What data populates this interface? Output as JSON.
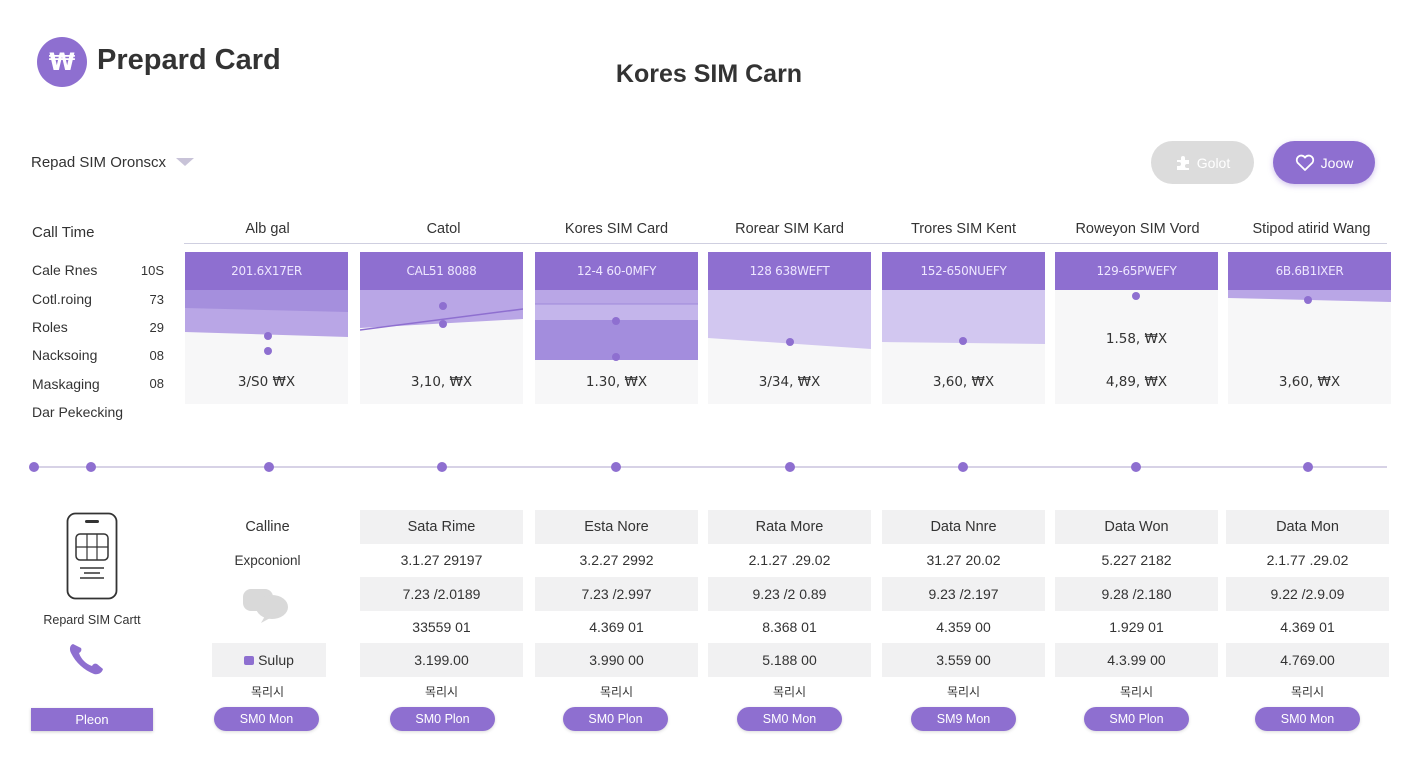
{
  "header": {
    "logo_glyph": "₩",
    "app_title": "Prepard Card",
    "page_title": "Kores SIM Carn"
  },
  "filter": {
    "dropdown_label": "Repad SIM Oronscx"
  },
  "buttons": {
    "global_label": "Golot",
    "join_label": "Joow"
  },
  "left_panel": {
    "call_time": "Call Time",
    "rows": [
      {
        "label": "Cale Rnes",
        "value": "10S"
      },
      {
        "label": "Cotl.roing",
        "value": "73"
      },
      {
        "label": "Roles",
        "value": "29"
      },
      {
        "label": "Nacksoing",
        "value": "08"
      },
      {
        "label": "Maskaging",
        "value": "08"
      },
      {
        "label": "Dar Pekecking",
        "value": ""
      }
    ],
    "phone_caption": "Repard SIM Cartt",
    "plan_label": "Pleon"
  },
  "columns": [
    {
      "name": "Alb gal",
      "code": "201.6X17ER",
      "price": "3/S0 ₩X",
      "mid": ""
    },
    {
      "name": "Catol",
      "code": "CAL51 8088",
      "price": "3,10, ₩X",
      "mid": ""
    },
    {
      "name": "Kores SIM Card",
      "code": "12-4 60-0MFY",
      "price": "1.30, ₩X",
      "mid": ""
    },
    {
      "name": "Rorear SIM Kard",
      "code": "128 638WEFT",
      "price": "3/34, ₩X",
      "mid": ""
    },
    {
      "name": "Trores SIM Kent",
      "code": "152-650NUEFY",
      "price": "3,60, ₩X",
      "mid": ""
    },
    {
      "name": "Roweyon SIM Vord",
      "code": "129-65PWEFY",
      "price": "4,89, ₩X",
      "mid": "1.58, ₩X"
    },
    {
      "name": "Stipod atirid Wang",
      "code": "6B.6B1IXER",
      "price": "3,60, ₩X",
      "mid": ""
    }
  ],
  "table": {
    "row_labels": [
      "Calline",
      "Expconionl",
      "",
      "",
      "Sulup",
      "목리시"
    ],
    "columns": [
      {
        "head": "Sata Rime",
        "r1": "3.1.27 29197",
        "r2": "7.23 /2.0189",
        "r3": "33559 01",
        "r4": "3.199.00",
        "kr": "목리시",
        "button": "SM0 Plon"
      },
      {
        "head": "Esta Nore",
        "r1": "3.2.27 2992",
        "r2": "7.23 /2.997",
        "r3": "4.369 01",
        "r4": "3.990 00",
        "kr": "목리시",
        "button": "SM0 Plon"
      },
      {
        "head": "Rata More",
        "r1": "2.1.27 .29.02",
        "r2": "9.23 /2 0.89",
        "r3": "8.368 01",
        "r4": "5.188 00",
        "kr": "목리시",
        "button": "SM0 Mon"
      },
      {
        "head": "Data Nnre",
        "r1": "31.27  20.02",
        "r2": "9.23 /2.197",
        "r3": "4.359 00",
        "r4": "3.559 00",
        "kr": "목리시",
        "button": "SM9 Mon"
      },
      {
        "head": "Data Won",
        "r1": "5.227 2182",
        "r2": "9.28 /2.180",
        "r3": "1.929 01",
        "r4": "4.3.99 00",
        "kr": "목리시",
        "button": "SM0 Plon"
      },
      {
        "head": "Data Mon",
        "r1": "2.1.77 .29.02",
        "r2": "9.22 /2.9.09",
        "r3": "4.369 01",
        "r4": "4.769.00",
        "kr": "목리시",
        "button": "SM0 Mon"
      }
    ],
    "first_col_kr": "목리시",
    "first_col_button": "SM0 Mon"
  },
  "colors": {
    "accent": "#8e6fd0",
    "accent_light": "#b9a6e6",
    "shade": "#f1f1f2",
    "muted_button": "#dcdcdc"
  },
  "icons": [
    "won-logo-icon",
    "chevron-down-icon",
    "puzzle-icon",
    "heart-icon",
    "sim-phone-icon",
    "chat-bubbles-icon",
    "phone-handset-icon",
    "chat-icon"
  ]
}
